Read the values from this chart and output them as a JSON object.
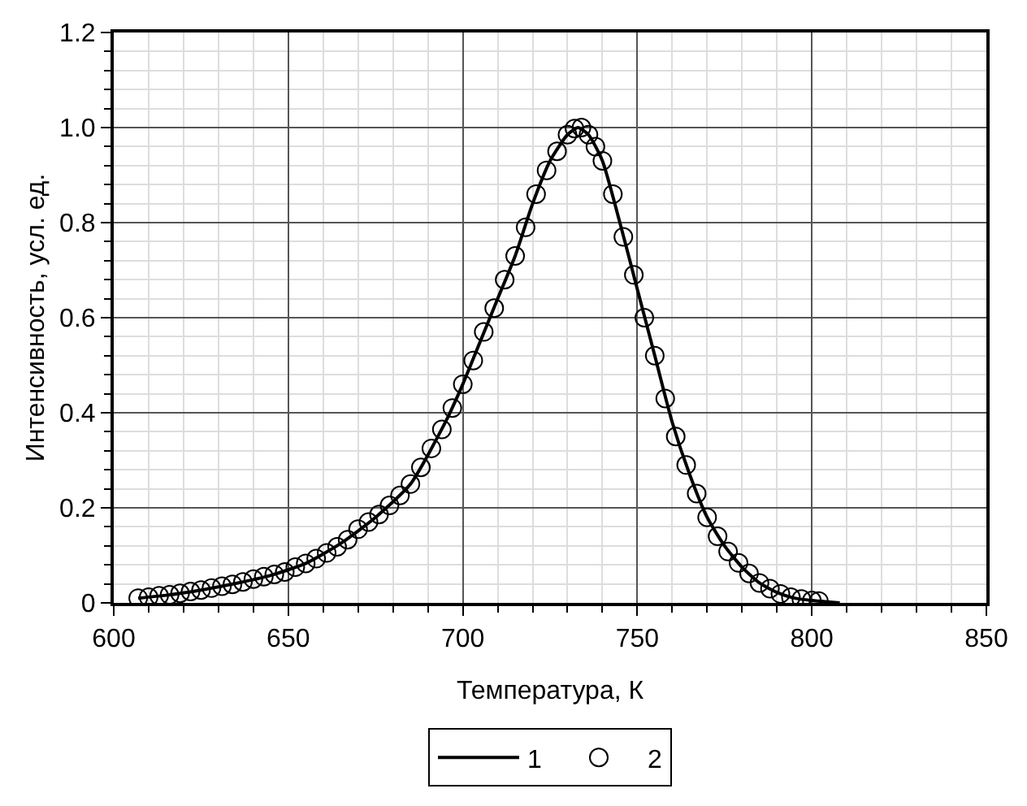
{
  "chart_data": {
    "type": "line",
    "xlabel": "Температура, К",
    "ylabel": "Интенсивность, усл. ед.",
    "xlim": [
      600,
      850
    ],
    "ylim": [
      0,
      1.2
    ],
    "xticks": [
      600,
      {
        "value": 610,
        "label": null
      },
      {
        "value": 620,
        "label": null
      },
      {
        "value": 630,
        "label": null
      },
      {
        "value": 640,
        "label": null
      },
      650,
      {
        "value": 660,
        "label": null
      },
      {
        "value": 670,
        "label": null
      },
      {
        "value": 680,
        "label": null
      },
      {
        "value": 690,
        "label": null
      },
      700,
      {
        "value": 710,
        "label": null
      },
      {
        "value": 720,
        "label": null
      },
      {
        "value": 730,
        "label": null
      },
      {
        "value": 740,
        "label": null
      },
      750,
      {
        "value": 760,
        "label": null
      },
      {
        "value": 770,
        "label": null
      },
      {
        "value": 780,
        "label": null
      },
      {
        "value": 790,
        "label": null
      },
      800,
      {
        "value": 810,
        "label": null
      },
      {
        "value": 820,
        "label": null
      },
      {
        "value": 830,
        "label": null
      },
      {
        "value": 840,
        "label": null
      },
      850
    ],
    "yticks": [
      0,
      {
        "value": 0.04,
        "label": null
      },
      {
        "value": 0.08,
        "label": null
      },
      {
        "value": 0.12,
        "label": null
      },
      {
        "value": 0.16,
        "label": null
      },
      0.2,
      {
        "value": 0.24,
        "label": null
      },
      {
        "value": 0.28,
        "label": null
      },
      {
        "value": 0.32,
        "label": null
      },
      {
        "value": 0.36,
        "label": null
      },
      0.4,
      {
        "value": 0.44,
        "label": null
      },
      {
        "value": 0.48,
        "label": null
      },
      {
        "value": 0.52,
        "label": null
      },
      {
        "value": 0.56,
        "label": null
      },
      0.6,
      {
        "value": 0.64,
        "label": null
      },
      {
        "value": 0.68,
        "label": null
      },
      {
        "value": 0.72,
        "label": null
      },
      {
        "value": 0.76,
        "label": null
      },
      0.8,
      {
        "value": 0.84,
        "label": null
      },
      {
        "value": 0.88,
        "label": null
      },
      {
        "value": 0.92,
        "label": null
      },
      {
        "value": 0.96,
        "label": null
      },
      {
        "value": 1.0,
        "label": "1.0"
      },
      {
        "value": 1.04,
        "label": null
      },
      {
        "value": 1.08,
        "label": null
      },
      {
        "value": 1.12,
        "label": null
      },
      {
        "value": 1.16,
        "label": null
      },
      {
        "value": 1.2,
        "label": "1.2"
      }
    ],
    "grid": true,
    "legend": "bottom",
    "series": [
      {
        "name": "1",
        "type": "line",
        "color": "#000000",
        "marker": "none",
        "line_style": "solid",
        "x": [
          607,
          615,
          625,
          635,
          645,
          655,
          665,
          675,
          685,
          695,
          700,
          705,
          710,
          715,
          720,
          725,
          730,
          733,
          736,
          740,
          745,
          750,
          755,
          760,
          765,
          770,
          775,
          780,
          785,
          790,
          795,
          800,
          808
        ],
        "values": [
          0.01,
          0.016,
          0.027,
          0.041,
          0.058,
          0.083,
          0.125,
          0.18,
          0.25,
          0.38,
          0.46,
          0.55,
          0.64,
          0.73,
          0.84,
          0.93,
          0.985,
          1.0,
          0.985,
          0.93,
          0.8,
          0.66,
          0.52,
          0.38,
          0.27,
          0.18,
          0.12,
          0.075,
          0.042,
          0.022,
          0.01,
          0.005,
          0
        ]
      },
      {
        "name": "2",
        "type": "scatter",
        "color": "#000000",
        "marker": "circle",
        "x": [
          607,
          610,
          613,
          616,
          619,
          622,
          625,
          628,
          631,
          634,
          637,
          640,
          643,
          646,
          649,
          652,
          655,
          658,
          661,
          664,
          667,
          670,
          673,
          676,
          679,
          682,
          685,
          688,
          691,
          694,
          697,
          700,
          703,
          706,
          709,
          712,
          715,
          718,
          721,
          724,
          727,
          730,
          732,
          734,
          736,
          738,
          740,
          743,
          746,
          749,
          752,
          755,
          758,
          761,
          764,
          767,
          770,
          773,
          776,
          779,
          782,
          785,
          788,
          791,
          794,
          797,
          800,
          802
        ],
        "values": [
          0.01,
          0.012,
          0.015,
          0.017,
          0.02,
          0.024,
          0.027,
          0.031,
          0.035,
          0.039,
          0.044,
          0.05,
          0.055,
          0.06,
          0.065,
          0.075,
          0.083,
          0.093,
          0.105,
          0.118,
          0.133,
          0.155,
          0.17,
          0.186,
          0.205,
          0.226,
          0.25,
          0.285,
          0.325,
          0.365,
          0.41,
          0.46,
          0.51,
          0.57,
          0.62,
          0.68,
          0.73,
          0.79,
          0.86,
          0.91,
          0.95,
          0.985,
          0.998,
          1.0,
          0.985,
          0.96,
          0.93,
          0.86,
          0.77,
          0.69,
          0.6,
          0.52,
          0.43,
          0.35,
          0.29,
          0.23,
          0.18,
          0.14,
          0.108,
          0.084,
          0.062,
          0.042,
          0.03,
          0.019,
          0.012,
          0.008,
          0.005,
          0.004
        ]
      }
    ]
  }
}
